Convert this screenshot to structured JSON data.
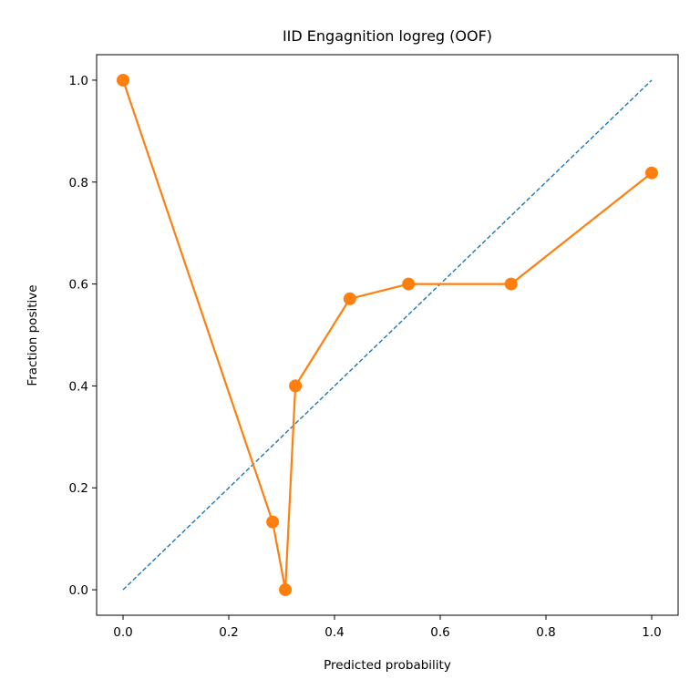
{
  "chart_data": {
    "type": "line",
    "title": "IID Engagnition logreg (OOF)",
    "xlabel": "Predicted probability",
    "ylabel": "Fraction positive",
    "xlim": [
      -0.05,
      1.05
    ],
    "ylim": [
      -0.05,
      1.05
    ],
    "xticks": [
      0.0,
      0.2,
      0.4,
      0.6,
      0.8,
      1.0
    ],
    "yticks": [
      0.0,
      0.2,
      0.4,
      0.6,
      0.8,
      1.0
    ],
    "xtick_labels": [
      "0.0",
      "0.2",
      "0.4",
      "0.6",
      "0.8",
      "1.0"
    ],
    "ytick_labels": [
      "0.0",
      "0.2",
      "0.4",
      "0.6",
      "0.8",
      "1.0"
    ],
    "grid": false,
    "reference_line": {
      "x": [
        0,
        1
      ],
      "y": [
        0,
        1
      ],
      "style": "dashed",
      "color": "#1f77b4"
    },
    "series": [
      {
        "color": "#ff7f0e",
        "marker": "circle",
        "x": [
          0.0,
          0.283,
          0.307,
          0.326,
          0.429,
          0.54,
          0.734,
          1.0
        ],
        "y": [
          1.0,
          0.133,
          0.0,
          0.4,
          0.571,
          0.6,
          0.6,
          0.818
        ]
      }
    ]
  }
}
